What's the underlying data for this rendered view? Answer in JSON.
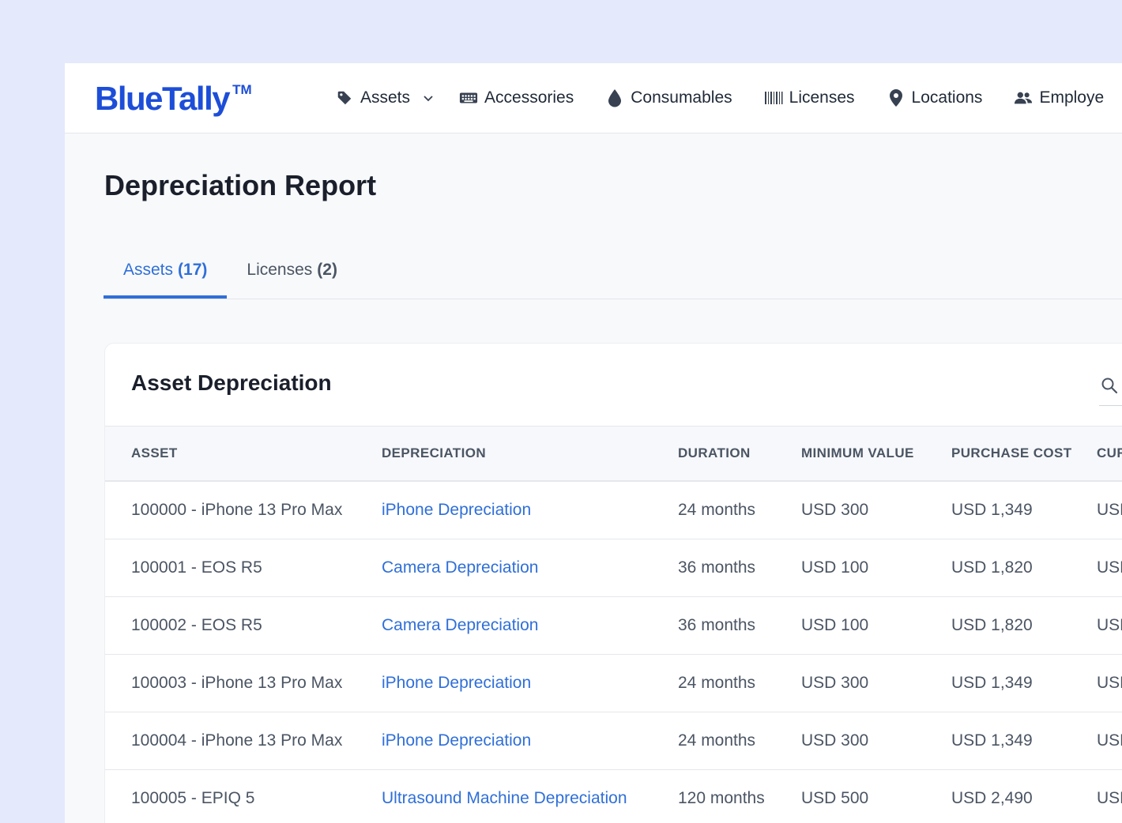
{
  "brand": {
    "name": "BlueTally",
    "tm": "TM"
  },
  "nav": [
    {
      "label": "Assets",
      "icon": "tag-icon",
      "has_dropdown": true
    },
    {
      "label": "Accessories",
      "icon": "keyboard-icon"
    },
    {
      "label": "Consumables",
      "icon": "drop-icon"
    },
    {
      "label": "Licenses",
      "icon": "barcode-icon"
    },
    {
      "label": "Locations",
      "icon": "map-pin-icon"
    },
    {
      "label": "Employe",
      "icon": "people-icon"
    }
  ],
  "page": {
    "title": "Depreciation Report"
  },
  "tabs": [
    {
      "label": "Assets",
      "count": "(17)",
      "active": true
    },
    {
      "label": "Licenses",
      "count": "(2)",
      "active": false
    }
  ],
  "card": {
    "title": "Asset Depreciation",
    "search_icon": "search-icon"
  },
  "table": {
    "columns": [
      "ASSET",
      "DEPRECIATION",
      "DURATION",
      "MINIMUM VALUE",
      "PURCHASE COST",
      "CUR"
    ],
    "rows": [
      [
        "100000 - iPhone 13 Pro Max",
        "iPhone Depreciation",
        "24 months",
        "USD 300",
        "USD 1,349",
        "USD"
      ],
      [
        "100001 - EOS R5",
        "Camera Depreciation",
        "36 months",
        "USD 100",
        "USD 1,820",
        "USD"
      ],
      [
        "100002 - EOS R5",
        "Camera Depreciation",
        "36 months",
        "USD 100",
        "USD 1,820",
        "USD"
      ],
      [
        "100003 - iPhone 13 Pro Max",
        "iPhone Depreciation",
        "24 months",
        "USD 300",
        "USD 1,349",
        "USD"
      ],
      [
        "100004 - iPhone 13 Pro Max",
        "iPhone Depreciation",
        "24 months",
        "USD 300",
        "USD 1,349",
        "USD"
      ],
      [
        "100005 - EPIQ 5",
        "Ultrasound Machine Depreciation",
        "120 months",
        "USD 500",
        "USD 2,490",
        "USD"
      ]
    ]
  },
  "colors": {
    "brand": "#1d4ed8",
    "link": "#2f6fd8",
    "background": "#e4e9fc"
  }
}
